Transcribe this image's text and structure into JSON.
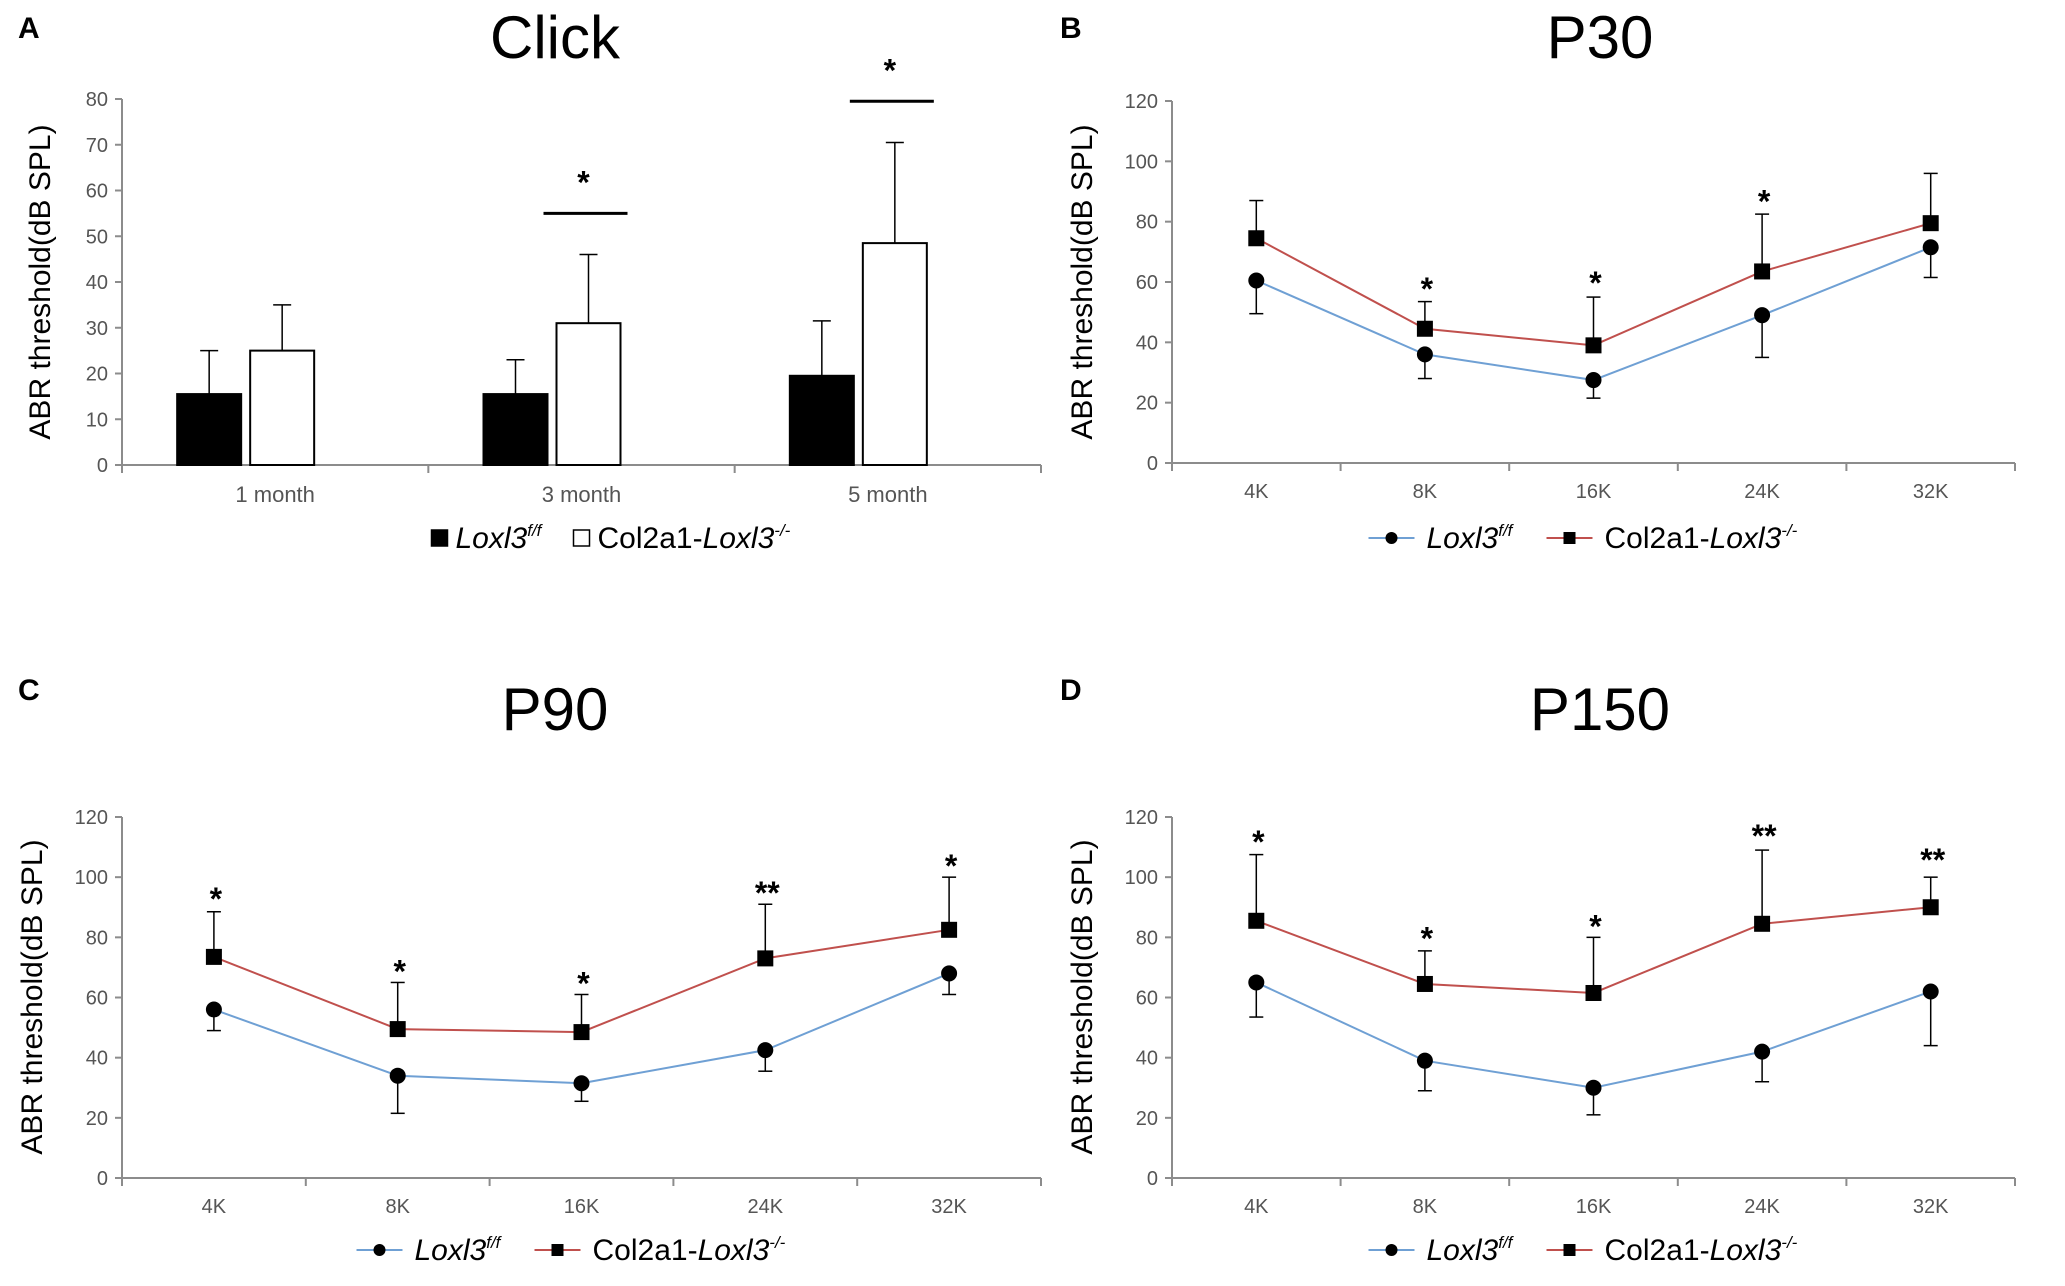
{
  "chart_data": [
    {
      "panel": "A",
      "type": "bar",
      "title": "Click",
      "ylabel": "ABR threshold(dB SPL)",
      "xlabel": "",
      "ylim": [
        0,
        80
      ],
      "yticks": [
        "0",
        "10",
        "20",
        "30",
        "40",
        "50",
        "60",
        "70",
        "80"
      ],
      "categories": [
        "1 month",
        "3 month",
        "5 month"
      ],
      "series": [
        {
          "name": "Loxl3f/f",
          "legend_main": "Loxl3",
          "legend_sup": "f/f",
          "legend_prefix": "",
          "fill": "#000000",
          "values": [
            15.5,
            15.5,
            19.5
          ],
          "errors": [
            9.5,
            7.5,
            12
          ]
        },
        {
          "name": "Col2a1-Loxl3-/-",
          "legend_main": "Loxl3",
          "legend_sup": "-/-",
          "legend_prefix": "Col2a1-",
          "fill": "#ffffff",
          "values": [
            25,
            31,
            48.5
          ],
          "errors": [
            10,
            15,
            22
          ]
        }
      ],
      "annotations": [
        {
          "category": "3 month",
          "text": "*",
          "bar": true,
          "y": 55
        },
        {
          "category": "5 month",
          "text": "*",
          "bar": true,
          "y": 79.5
        }
      ]
    },
    {
      "panel": "B",
      "type": "line",
      "title": "P30",
      "ylabel": "ABR threshold(dB SPL)",
      "ylim": [
        0,
        120
      ],
      "yticks": [
        "0",
        "20",
        "40",
        "60",
        "80",
        "100",
        "120"
      ],
      "categories": [
        "4K",
        "8K",
        "16K",
        "24K",
        "32K"
      ],
      "series": [
        {
          "name": "Loxl3f/f",
          "legend_main": "Loxl3",
          "legend_sup": "f/f",
          "legend_prefix": "",
          "color": "#6fa0d4",
          "marker": "circle",
          "values": [
            60.5,
            36,
            27.5,
            49,
            71.5
          ],
          "errors": [
            11,
            8,
            6,
            14,
            10
          ]
        },
        {
          "name": "Col2a1-Loxl3-/-",
          "legend_main": "Loxl3",
          "legend_sup": "-/-",
          "legend_prefix": "Col2a1-",
          "color": "#c0504d",
          "marker": "square",
          "values": [
            74.5,
            44.5,
            39,
            63.5,
            79.5
          ],
          "errors": [
            12.5,
            9,
            16,
            19,
            16.5
          ]
        }
      ],
      "annotations": [
        {
          "category": "8K",
          "text": "*",
          "y": 58
        },
        {
          "category": "16K",
          "text": "*",
          "y": 60
        },
        {
          "category": "24K",
          "text": "*",
          "y": 87
        }
      ]
    },
    {
      "panel": "C",
      "type": "line",
      "title": "P90",
      "ylabel": "ABR threshold(dB SPL)",
      "ylim": [
        0,
        120
      ],
      "yticks": [
        "0",
        "20",
        "40",
        "60",
        "80",
        "100",
        "120"
      ],
      "categories": [
        "4K",
        "8K",
        "16K",
        "24K",
        "32K"
      ],
      "series": [
        {
          "name": "Loxl3f/f",
          "legend_main": "Loxl3",
          "legend_sup": "f/f",
          "legend_prefix": "",
          "color": "#6fa0d4",
          "marker": "circle",
          "values": [
            56,
            34,
            31.5,
            42.5,
            68
          ],
          "errors": [
            7,
            12.5,
            6,
            7,
            7
          ]
        },
        {
          "name": "Col2a1-Loxl3-/-",
          "legend_main": "Loxl3",
          "legend_sup": "-/-",
          "legend_prefix": "Col2a1-",
          "color": "#c0504d",
          "marker": "square",
          "values": [
            73.5,
            49.5,
            48.5,
            73,
            82.5
          ],
          "errors": [
            15,
            15.5,
            12.5,
            18,
            17.5
          ]
        }
      ],
      "annotations": [
        {
          "category": "4K",
          "text": "*",
          "y": 93
        },
        {
          "category": "8K",
          "text": "*",
          "y": 69
        },
        {
          "category": "16K",
          "text": "*",
          "y": 65
        },
        {
          "category": "24K",
          "text": "**",
          "y": 95
        },
        {
          "category": "32K",
          "text": "*",
          "y": 104
        }
      ]
    },
    {
      "panel": "D",
      "type": "line",
      "title": "P150",
      "ylabel": "ABR threshold(dB SPL)",
      "ylim": [
        0,
        120
      ],
      "yticks": [
        "0",
        "20",
        "40",
        "60",
        "80",
        "100",
        "120"
      ],
      "categories": [
        "4K",
        "8K",
        "16K",
        "24K",
        "32K"
      ],
      "series": [
        {
          "name": "Loxl3f/f",
          "legend_main": "Loxl3",
          "legend_sup": "f/f",
          "legend_prefix": "",
          "color": "#6fa0d4",
          "marker": "circle",
          "values": [
            65,
            39,
            30,
            42,
            62
          ],
          "errors": [
            11.5,
            10,
            9,
            10,
            18
          ]
        },
        {
          "name": "Col2a1-Loxl3-/-",
          "legend_main": "Loxl3",
          "legend_sup": "-/-",
          "legend_prefix": "Col2a1-",
          "color": "#c0504d",
          "marker": "square",
          "values": [
            85.5,
            64.5,
            61.5,
            84.5,
            90
          ],
          "errors": [
            22,
            11,
            18.5,
            24.5,
            10
          ]
        }
      ],
      "annotations": [
        {
          "category": "4K",
          "text": "*",
          "y": 112
        },
        {
          "category": "8K",
          "text": "*",
          "y": 80
        },
        {
          "category": "16K",
          "text": "*",
          "y": 84
        },
        {
          "category": "24K",
          "text": "**",
          "y": 114
        },
        {
          "category": "32K",
          "text": "**",
          "y": 106
        }
      ]
    }
  ]
}
